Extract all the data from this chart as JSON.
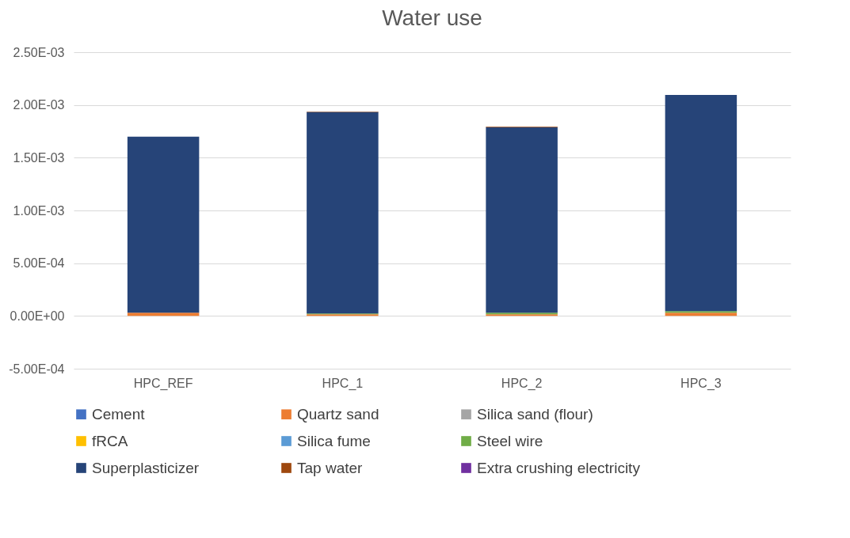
{
  "chart_data": {
    "type": "bar",
    "title": "Water use",
    "stacked": true,
    "grid": "y",
    "legend": "bottom",
    "categories": [
      "HPC_REF",
      "HPC_1",
      "HPC_2",
      "HPC_3"
    ],
    "ylim": [
      -0.0005,
      0.0025
    ],
    "yticks": [
      {
        "value": -0.0005,
        "label": "-5.00E-04"
      },
      {
        "value": 0,
        "label": "0.00E+00"
      },
      {
        "value": 0.0005,
        "label": "5.00E-04"
      },
      {
        "value": 0.001,
        "label": "1.00E-03"
      },
      {
        "value": 0.0015,
        "label": "1.50E-03"
      },
      {
        "value": 0.002,
        "label": "2.00E-03"
      },
      {
        "value": 0.0025,
        "label": "2.50E-03"
      }
    ],
    "series": [
      {
        "name": "Cement",
        "color": "#4472c4",
        "values": [
          0,
          0,
          0,
          0
        ]
      },
      {
        "name": "Quartz sand",
        "color": "#ed7d31",
        "values": [
          3e-05,
          1.5e-05,
          1.5e-05,
          3e-05
        ]
      },
      {
        "name": "Silica sand (flour)",
        "color": "#a5a5a5",
        "values": [
          0,
          0,
          0,
          0
        ]
      },
      {
        "name": "fRCA",
        "color": "#ffc000",
        "values": [
          0,
          0,
          0,
          0
        ]
      },
      {
        "name": "Silica fume",
        "color": "#5b9bd5",
        "values": [
          0,
          0,
          0,
          0
        ]
      },
      {
        "name": "Steel wire",
        "color": "#70ad47",
        "values": [
          0,
          8e-06,
          1.5e-05,
          1.5e-05
        ]
      },
      {
        "name": "Superplasticizer",
        "color": "#264478",
        "values": [
          0.00167,
          0.00191,
          0.00176,
          0.00205
        ]
      },
      {
        "name": "Tap water",
        "color": "#9e480e",
        "values": [
          0,
          5e-06,
          5e-06,
          0
        ]
      },
      {
        "name": "Extra crushing electricity",
        "color": "#7030a0",
        "values": [
          0,
          0,
          0,
          0
        ]
      }
    ]
  }
}
